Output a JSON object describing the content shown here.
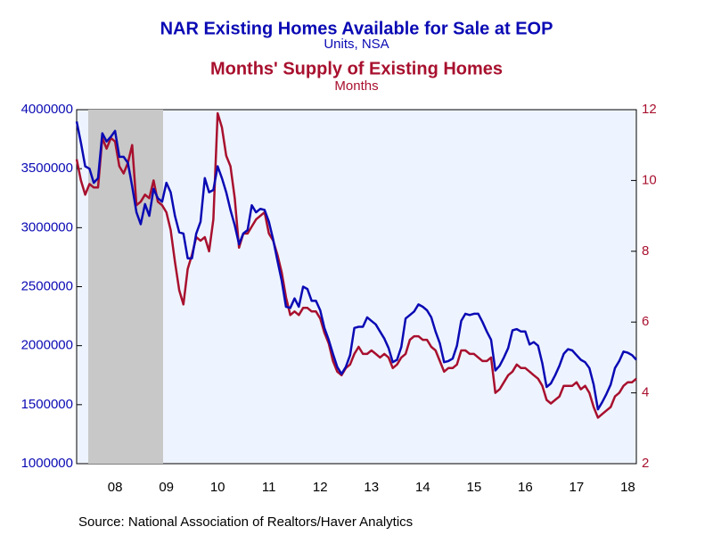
{
  "chart_data": {
    "type": "line",
    "title": "NAR Existing Homes Available for Sale at EOP",
    "subtitle": "Units, NSA",
    "title_2": "Months' Supply of Existing Homes",
    "subtitle_2": "Months",
    "source": "Source:  National Association of Realtors/Haver Analytics",
    "categories": [
      null,
      null,
      null,
      null,
      null,
      null,
      null,
      null,
      null,
      "08",
      null,
      null,
      null,
      null,
      null,
      null,
      null,
      null,
      null,
      null,
      null,
      "09",
      null,
      null,
      null,
      null,
      null,
      null,
      null,
      null,
      null,
      null,
      null,
      "10",
      null,
      null,
      null,
      null,
      null,
      null,
      null,
      null,
      null,
      null,
      null,
      "11",
      null,
      null,
      null,
      null,
      null,
      null,
      null,
      null,
      null,
      null,
      null,
      "12",
      null,
      null,
      null,
      null,
      null,
      null,
      null,
      null,
      null,
      null,
      null,
      "13",
      null,
      null,
      null,
      null,
      null,
      null,
      null,
      null,
      null,
      null,
      null,
      "14",
      null,
      null,
      null,
      null,
      null,
      null,
      null,
      null,
      null,
      null,
      null,
      "15",
      null,
      null,
      null,
      null,
      null,
      null,
      null,
      null,
      null,
      null,
      null,
      "16",
      null,
      null,
      null,
      null,
      null,
      null,
      null,
      null,
      null,
      null,
      null,
      "17",
      null,
      null,
      null,
      null,
      null,
      null,
      null,
      null,
      null,
      null,
      null,
      "18",
      null,
      null
    ],
    "series": [
      {
        "color": "#0a0ab4",
        "axis": "y",
        "values": [
          3900000,
          3720000,
          3520000,
          3500000,
          3380000,
          3420000,
          3800000,
          3730000,
          3770000,
          3820000,
          3600000,
          3600000,
          3550000,
          3350000,
          3130000,
          3030000,
          3200000,
          3100000,
          3330000,
          3250000,
          3220000,
          3380000,
          3300000,
          3100000,
          2960000,
          2950000,
          2740000,
          2740000,
          2950000,
          3050000,
          3420000,
          3300000,
          3320000,
          3520000,
          3420000,
          3300000,
          3150000,
          3020000,
          2860000,
          2950000,
          2980000,
          3190000,
          3130000,
          3160000,
          3150000,
          3050000,
          2900000,
          2720000,
          2550000,
          2330000,
          2320000,
          2400000,
          2330000,
          2500000,
          2480000,
          2380000,
          2380000,
          2300000,
          2150000,
          2050000,
          1930000,
          1820000,
          1760000,
          1820000,
          1920000,
          2150000,
          2160000,
          2160000,
          2240000,
          2210000,
          2180000,
          2120000,
          2060000,
          1980000,
          1860000,
          1880000,
          1990000,
          2230000,
          2260000,
          2290000,
          2350000,
          2330000,
          2300000,
          2240000,
          2120000,
          2020000,
          1860000,
          1870000,
          1890000,
          2000000,
          2210000,
          2270000,
          2260000,
          2270000,
          2270000,
          2200000,
          2120000,
          2050000,
          1790000,
          1830000,
          1900000,
          1980000,
          2130000,
          2140000,
          2120000,
          2120000,
          2010000,
          2030000,
          2000000,
          1850000,
          1650000,
          1680000,
          1750000,
          1830000,
          1930000,
          1970000,
          1960000,
          1920000,
          1880000,
          1860000,
          1810000,
          1670000,
          1460000,
          1520000,
          1590000,
          1670000,
          1810000,
          1870000,
          1950000,
          1940000,
          1920000,
          1880000
        ]
      },
      {
        "color": "#a8102e",
        "axis": "y2",
        "values": [
          10.6,
          10.0,
          9.6,
          9.9,
          9.8,
          9.8,
          11.2,
          10.9,
          11.2,
          11.1,
          10.4,
          10.2,
          10.5,
          11.0,
          9.3,
          9.4,
          9.6,
          9.5,
          10.0,
          9.4,
          9.3,
          9.1,
          8.6,
          7.7,
          6.9,
          6.5,
          7.5,
          7.9,
          8.4,
          8.3,
          8.4,
          8.0,
          8.9,
          11.9,
          11.5,
          10.7,
          10.4,
          9.5,
          8.1,
          8.5,
          8.5,
          8.7,
          8.9,
          9.0,
          9.1,
          8.5,
          8.3,
          7.9,
          7.4,
          6.7,
          6.2,
          6.3,
          6.2,
          6.4,
          6.4,
          6.3,
          6.3,
          6.1,
          5.7,
          5.4,
          4.9,
          4.6,
          4.5,
          4.7,
          4.8,
          5.1,
          5.3,
          5.1,
          5.1,
          5.2,
          5.1,
          5.0,
          5.1,
          5.0,
          4.7,
          4.8,
          5.0,
          5.1,
          5.5,
          5.6,
          5.6,
          5.5,
          5.5,
          5.3,
          5.2,
          4.9,
          4.6,
          4.7,
          4.7,
          4.8,
          5.2,
          5.2,
          5.1,
          5.1,
          5.0,
          4.9,
          4.9,
          5.0,
          4.0,
          4.1,
          4.3,
          4.5,
          4.6,
          4.8,
          4.7,
          4.7,
          4.6,
          4.5,
          4.4,
          4.2,
          3.8,
          3.7,
          3.8,
          3.9,
          4.2,
          4.2,
          4.2,
          4.3,
          4.1,
          4.2,
          4.0,
          3.6,
          3.3,
          3.4,
          3.5,
          3.6,
          3.9,
          4.0,
          4.2,
          4.3,
          4.3,
          4.4
        ]
      }
    ],
    "ylim": [
      1000000,
      4000000
    ],
    "yticks": [
      1000000,
      1500000,
      2000000,
      2500000,
      3000000,
      3500000,
      4000000
    ],
    "y2lim": [
      2,
      12
    ],
    "y2ticks": [
      2,
      4,
      6,
      8,
      10,
      12
    ]
  }
}
